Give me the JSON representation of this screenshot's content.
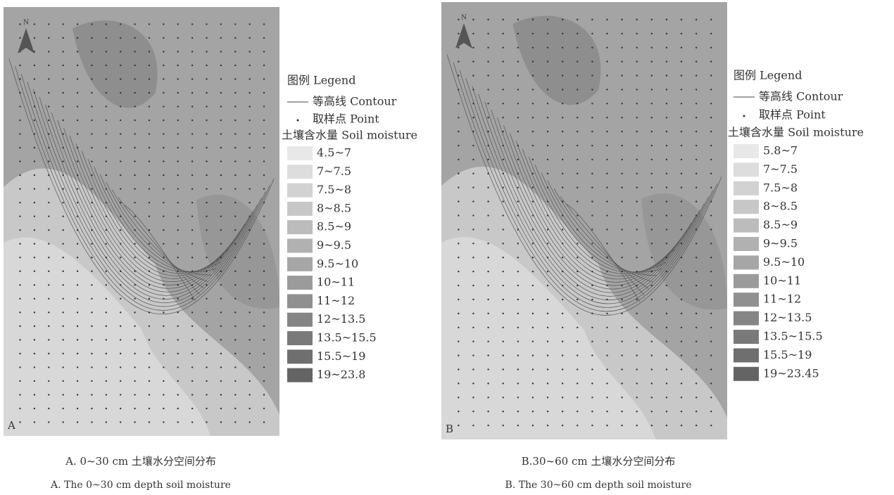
{
  "panels": [
    {
      "letter": "A",
      "north": "N",
      "legend": {
        "title": "图例 Legend",
        "contour": "等高线 Contour",
        "point": "取样点 Point",
        "moisture": "土壤含水量 Soil moisture",
        "classes": [
          "4.5~7",
          "7~7.5",
          "7.5~8",
          "8~8.5",
          "8.5~9",
          "9~9.5",
          "9.5~10",
          "10~11",
          "11~12",
          "12~13.5",
          "13.5~15.5",
          "15.5~19",
          "19~23.8"
        ]
      },
      "caption_cn": "A. 0~30 cm 土壤水分空间分布",
      "caption_en": "A. The 0~30 cm depth soil moisture"
    },
    {
      "letter": "B",
      "north": "N",
      "legend": {
        "title": "图例 Legend",
        "contour": "等高线 Contour",
        "point": "取样点 Point",
        "moisture": "土壤含水量 Soil moisture",
        "classes": [
          "5.8~7",
          "7~7.5",
          "7.5~8",
          "8~8.5",
          "8.5~9",
          "9~9.5",
          "9.5~10",
          "10~11",
          "11~12",
          "12~13.5",
          "13.5~15.5",
          "15.5~19",
          "19~23.45"
        ]
      },
      "caption_cn": "B.30~60 cm 土壤水分空间分布",
      "caption_en": "B. The 30~60 cm depth soil moisture"
    }
  ]
}
